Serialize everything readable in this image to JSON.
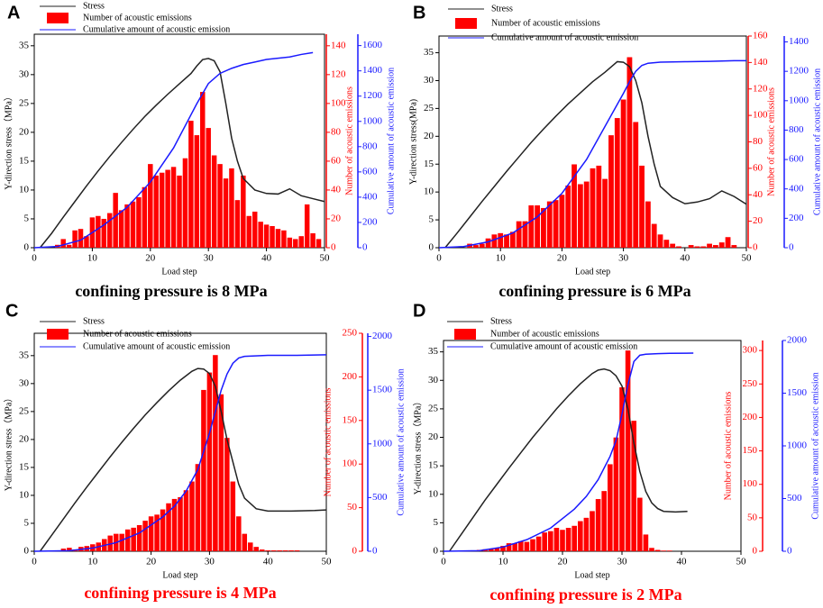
{
  "chart_data": [
    {
      "type": "combo",
      "panel_label": "A",
      "caption": "confining pressure is 8 MPa",
      "caption_color": "#000000",
      "x_label": "Load step",
      "y_label": "Y-direction stress（MPa）",
      "y2_label": "Number of acoustic emissions",
      "y3_label": "Cumulative amount of acoustic emission",
      "xlim": [
        0,
        50
      ],
      "xticks": [
        0,
        10,
        20,
        30,
        40,
        50
      ],
      "ylim": [
        0,
        37
      ],
      "yticks": [
        0,
        5,
        10,
        15,
        20,
        25,
        30,
        35
      ],
      "y2lim": [
        0,
        148
      ],
      "y2ticks": [
        0,
        20,
        40,
        60,
        80,
        100,
        120,
        140
      ],
      "y3lim": [
        0,
        1690
      ],
      "y3ticks": [
        0,
        200,
        400,
        600,
        800,
        1000,
        1200,
        1400,
        1600
      ],
      "series": [
        {
          "name": "Stress",
          "type": "line",
          "axis": "y",
          "color": "#222222",
          "x": [
            1,
            3,
            5,
            7,
            9,
            11,
            13,
            15,
            17,
            19,
            21,
            23,
            25,
            27,
            28,
            29,
            30,
            31,
            32,
            33,
            34,
            35,
            36,
            38,
            40,
            42,
            44,
            46,
            48,
            50
          ],
          "values": [
            0,
            2.5,
            5.3,
            8,
            10.7,
            13.3,
            15.8,
            18.2,
            20.5,
            22.7,
            24.7,
            26.6,
            28.4,
            30.2,
            31.5,
            32.6,
            32.8,
            32.4,
            30.5,
            25,
            19,
            15,
            12,
            10,
            9.4,
            9.3,
            10.2,
            9,
            8.5,
            8
          ]
        },
        {
          "name": "Number of acoustic emissions",
          "type": "bar",
          "axis": "y2",
          "color": "#ff0000",
          "x": [
            1,
            2,
            3,
            4,
            5,
            6,
            7,
            8,
            9,
            10,
            11,
            12,
            13,
            14,
            15,
            16,
            17,
            18,
            19,
            20,
            21,
            22,
            23,
            24,
            25,
            26,
            27,
            28,
            29,
            30,
            31,
            32,
            33,
            34,
            35,
            36,
            37,
            38,
            39,
            40,
            41,
            42,
            43,
            44,
            45,
            46,
            47,
            48,
            49
          ],
          "values": [
            0,
            0,
            0,
            2,
            6,
            2,
            12,
            13,
            8,
            21,
            22,
            20,
            24,
            38,
            26,
            30,
            32,
            35,
            42,
            58,
            50,
            52,
            54,
            56,
            50,
            62,
            88,
            78,
            108,
            83,
            64,
            58,
            48,
            55,
            33,
            50,
            22,
            25,
            18,
            16,
            15,
            13,
            12,
            7,
            6,
            8,
            30,
            10,
            6
          ]
        },
        {
          "name": "Cumulative amount of acoustic emission",
          "type": "line",
          "axis": "y3",
          "color": "#1a1aff",
          "x": [
            0,
            4,
            8,
            12,
            16,
            20,
            24,
            28,
            30,
            32,
            34,
            36,
            38,
            40,
            42,
            44,
            46,
            48
          ],
          "values": [
            0,
            10,
            60,
            180,
            320,
            520,
            790,
            1140,
            1300,
            1380,
            1420,
            1450,
            1470,
            1490,
            1500,
            1510,
            1530,
            1545
          ]
        }
      ]
    },
    {
      "type": "combo",
      "panel_label": "B",
      "caption": "confining pressure is 6 MPa",
      "caption_color": "#000000",
      "x_label": "Load step",
      "y_label": "Y-direction stress(MPa)",
      "y2_label": "Number of acoustic emissions",
      "y3_label": "Cumulative amount of acoustic emission",
      "xlim": [
        0,
        50
      ],
      "xticks": [
        0,
        10,
        20,
        30,
        40,
        50
      ],
      "ylim": [
        0,
        38
      ],
      "yticks": [
        0,
        5,
        10,
        15,
        20,
        25,
        30,
        35
      ],
      "y2lim": [
        0,
        160
      ],
      "y2ticks": [
        0,
        20,
        40,
        60,
        80,
        100,
        120,
        140,
        160
      ],
      "y3lim": [
        0,
        1440
      ],
      "y3ticks": [
        0,
        200,
        400,
        600,
        800,
        1000,
        1200,
        1400
      ],
      "series": [
        {
          "name": "Stress",
          "type": "line",
          "axis": "y",
          "color": "#222222",
          "x": [
            1,
            3,
            5,
            7,
            9,
            11,
            13,
            15,
            17,
            19,
            21,
            23,
            25,
            27,
            29,
            30,
            31,
            32,
            33,
            34,
            35,
            36,
            38,
            40,
            42,
            44,
            46,
            48,
            50
          ],
          "values": [
            0,
            2.7,
            5.5,
            8.3,
            11,
            13.7,
            16.3,
            18.9,
            21.3,
            23.6,
            25.8,
            27.8,
            29.8,
            31.5,
            33.4,
            33.3,
            32.5,
            30,
            26,
            20,
            15,
            11,
            9,
            7.9,
            8.2,
            8.8,
            10.2,
            9.2,
            7.8
          ]
        },
        {
          "name": "Number of acoustic emissions",
          "type": "bar",
          "axis": "y2",
          "color": "#ff0000",
          "x": [
            1,
            2,
            3,
            4,
            5,
            6,
            7,
            8,
            9,
            10,
            11,
            12,
            13,
            14,
            15,
            16,
            17,
            18,
            19,
            20,
            21,
            22,
            23,
            24,
            25,
            26,
            27,
            28,
            29,
            30,
            31,
            32,
            33,
            34,
            35,
            36,
            37,
            38,
            39,
            40,
            41,
            42,
            43,
            44,
            45,
            46,
            47,
            48,
            49
          ],
          "values": [
            0,
            0,
            0,
            0,
            3,
            2,
            3,
            7,
            10,
            11,
            10,
            12,
            20,
            20,
            32,
            32,
            30,
            35,
            36,
            40,
            47,
            63,
            48,
            50,
            60,
            62,
            52,
            85,
            98,
            112,
            144,
            95,
            62,
            35,
            18,
            10,
            6,
            3,
            1,
            0,
            2,
            1,
            1,
            3,
            2,
            4,
            8,
            2,
            0
          ]
        },
        {
          "name": "Cumulative amount of acoustic emission",
          "type": "line",
          "axis": "y3",
          "color": "#1a1aff",
          "x": [
            0,
            4,
            8,
            12,
            16,
            20,
            24,
            28,
            30,
            31,
            32,
            33,
            34,
            36,
            40,
            44,
            48,
            50
          ],
          "values": [
            0,
            8,
            40,
            100,
            210,
            370,
            600,
            900,
            1050,
            1130,
            1200,
            1240,
            1255,
            1262,
            1265,
            1268,
            1272,
            1272
          ]
        }
      ]
    },
    {
      "type": "combo",
      "panel_label": "C",
      "caption": "confining pressure is 4 MPa",
      "caption_color": "#ff0000",
      "x_label": "Load step",
      "y_label": "Y-direction stress（MPa）",
      "y2_label": "Number of acoustic emissions",
      "y3_label": "Cumulative amount of acoustic emission",
      "xlim": [
        0,
        50
      ],
      "xticks": [
        0,
        10,
        20,
        30,
        40,
        50
      ],
      "ylim": [
        0,
        39
      ],
      "yticks": [
        0,
        5,
        10,
        15,
        20,
        25,
        30,
        35
      ],
      "y2lim": [
        0,
        250
      ],
      "y2ticks": [
        0,
        50,
        100,
        150,
        200,
        250
      ],
      "y3lim": [
        0,
        2030
      ],
      "y3ticks": [
        0,
        500,
        1000,
        1500,
        2000
      ],
      "series": [
        {
          "name": "Stress",
          "type": "line",
          "axis": "y",
          "color": "#222222",
          "x": [
            1,
            3,
            5,
            7,
            9,
            11,
            13,
            15,
            17,
            19,
            21,
            23,
            25,
            27,
            28,
            29,
            30,
            31,
            32,
            33,
            34,
            35,
            36,
            38,
            40,
            44,
            48,
            50
          ],
          "values": [
            0,
            2.9,
            5.8,
            8.7,
            11.5,
            14.2,
            16.9,
            19.5,
            22,
            24.4,
            26.6,
            28.7,
            30.6,
            32.2,
            32.7,
            32.6,
            31.8,
            29.5,
            25,
            20,
            16,
            12,
            9.5,
            7.6,
            7.2,
            7.2,
            7.3,
            7.4
          ]
        },
        {
          "name": "Number of acoustic emissions",
          "type": "bar",
          "axis": "y2",
          "color": "#ff0000",
          "x": [
            1,
            2,
            3,
            4,
            5,
            6,
            7,
            8,
            9,
            10,
            11,
            12,
            13,
            14,
            15,
            16,
            17,
            18,
            19,
            20,
            21,
            22,
            23,
            24,
            25,
            26,
            27,
            28,
            29,
            30,
            31,
            32,
            33,
            34,
            35,
            36,
            37,
            38,
            39,
            40,
            41,
            42,
            43,
            44,
            45,
            46,
            47,
            48,
            49
          ],
          "values": [
            0,
            0,
            0,
            0,
            3,
            4,
            2,
            5,
            6,
            8,
            10,
            14,
            18,
            20,
            20,
            25,
            27,
            30,
            35,
            40,
            42,
            48,
            55,
            60,
            62,
            70,
            80,
            100,
            185,
            205,
            225,
            180,
            130,
            80,
            40,
            20,
            10,
            5,
            2,
            1,
            1,
            1,
            1,
            1,
            1,
            0,
            0,
            0,
            0
          ]
        },
        {
          "name": "Cumulative amount of acoustic emission",
          "type": "line",
          "axis": "y3",
          "color": "#1a1aff",
          "x": [
            0,
            6,
            10,
            14,
            18,
            22,
            24,
            26,
            28,
            30,
            31,
            32,
            33,
            34,
            35,
            36,
            40,
            45,
            50
          ],
          "values": [
            0,
            5,
            30,
            80,
            170,
            320,
            420,
            560,
            760,
            1100,
            1300,
            1500,
            1650,
            1750,
            1800,
            1815,
            1825,
            1825,
            1830
          ]
        }
      ]
    },
    {
      "type": "combo",
      "panel_label": "D",
      "caption": "confining pressure is 2 MPa",
      "caption_color": "#ff0000",
      "x_label": "Load step",
      "y_label": "Y-direction stress（MPa）",
      "y2_label": "Number of acoustic emissions",
      "y3_label": "Cumulative amount of acoustic emission",
      "xlim": [
        0,
        50
      ],
      "xticks": [
        0,
        10,
        20,
        30,
        40,
        50
      ],
      "ylim": [
        0,
        37
      ],
      "yticks": [
        0,
        5,
        10,
        15,
        20,
        25,
        30,
        35
      ],
      "y2lim": [
        0,
        315
      ],
      "y2ticks": [
        0,
        50,
        100,
        150,
        200,
        250,
        300
      ],
      "y3lim": [
        0,
        2000
      ],
      "y3ticks": [
        0,
        500,
        1000,
        1500,
        2000
      ],
      "series": [
        {
          "name": "Stress",
          "type": "line",
          "axis": "y",
          "color": "#222222",
          "x": [
            1,
            3,
            5,
            7,
            9,
            11,
            13,
            15,
            17,
            19,
            21,
            23,
            25,
            26,
            27,
            28,
            29,
            30,
            31,
            32,
            33,
            34,
            35,
            36,
            37,
            39,
            41
          ],
          "values": [
            0,
            3,
            6,
            9,
            11.8,
            14.6,
            17.3,
            20,
            22.5,
            25,
            27.3,
            29.4,
            31.2,
            31.8,
            32,
            31.7,
            30.8,
            29,
            25,
            19,
            14,
            10.5,
            8.5,
            7.5,
            7,
            6.9,
            7
          ]
        },
        {
          "name": "Number of acoustic emissions",
          "type": "bar",
          "axis": "y2",
          "color": "#ff0000",
          "x": [
            1,
            2,
            3,
            4,
            5,
            6,
            7,
            8,
            9,
            10,
            11,
            12,
            13,
            14,
            15,
            16,
            17,
            18,
            19,
            20,
            21,
            22,
            23,
            24,
            25,
            26,
            27,
            28,
            29,
            30,
            31,
            32,
            33,
            34,
            35,
            36,
            37,
            38,
            39,
            40,
            41,
            42
          ],
          "values": [
            0,
            0,
            0,
            0,
            0,
            2,
            3,
            4,
            5,
            8,
            12,
            12,
            15,
            14,
            18,
            22,
            28,
            30,
            35,
            32,
            35,
            38,
            45,
            50,
            60,
            78,
            90,
            130,
            170,
            245,
            300,
            195,
            80,
            25,
            5,
            2,
            1,
            1,
            0,
            0,
            0,
            0
          ]
        },
        {
          "name": "Cumulative amount of acoustic emission",
          "type": "line",
          "axis": "y3",
          "color": "#1a1aff",
          "x": [
            0,
            6,
            10,
            14,
            18,
            22,
            24,
            26,
            28,
            29,
            30,
            31,
            32,
            33,
            34,
            36,
            38,
            42
          ],
          "values": [
            0,
            5,
            40,
            110,
            220,
            400,
            520,
            680,
            900,
            1050,
            1300,
            1580,
            1800,
            1860,
            1870,
            1875,
            1878,
            1880
          ]
        }
      ]
    }
  ]
}
